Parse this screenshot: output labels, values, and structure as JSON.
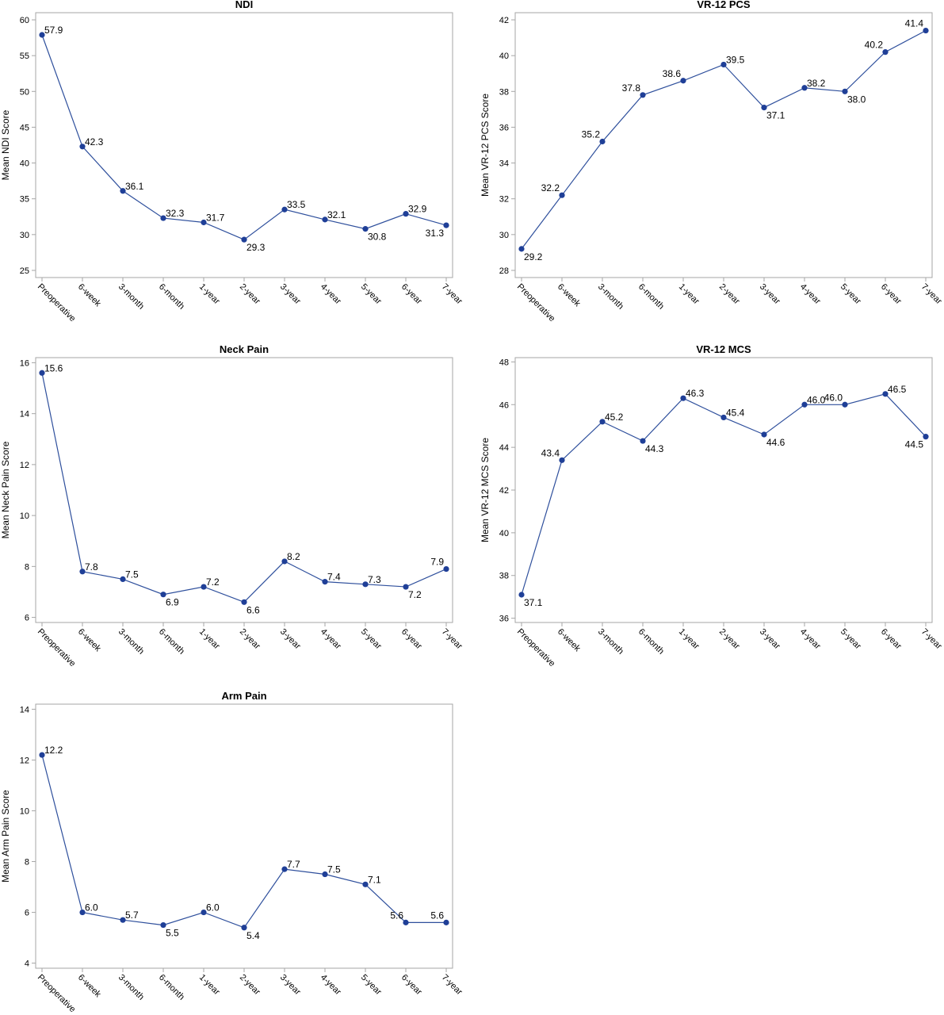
{
  "line_color": "#2E4F9C",
  "point_color": "#1F3F97",
  "frame_color": "#A6A6A6",
  "text_color": "#000000",
  "chart_data": [
    {
      "type": "line",
      "title": "NDI",
      "ylabel": "Mean NDI Score",
      "xlabel": "",
      "ylim": [
        24,
        61
      ],
      "yticks": [
        25,
        30,
        35,
        40,
        45,
        50,
        55,
        60
      ],
      "categories": [
        "Preoperative",
        "6-week",
        "3-month",
        "6-month",
        "1-year",
        "2-year",
        "3-year",
        "4-year",
        "5-year",
        "6-year",
        "7-year"
      ],
      "values": [
        57.9,
        42.3,
        36.1,
        32.3,
        31.7,
        29.3,
        33.5,
        32.1,
        30.8,
        32.9,
        31.3
      ],
      "labels": [
        "57.9",
        "42.3",
        "36.1",
        "32.3",
        "31.7",
        "29.3",
        "33.5",
        "32.1",
        "30.8",
        "32.9",
        "31.3"
      ],
      "label_pos": [
        "right",
        "right",
        "right",
        "right",
        "right",
        "below-right",
        "right",
        "right",
        "below-right",
        "right",
        "below-left"
      ]
    },
    {
      "type": "line",
      "title": "VR-12 PCS",
      "ylabel": "Mean VR-12 PCS Score",
      "xlabel": "",
      "ylim": [
        27.6,
        42.4
      ],
      "yticks": [
        28,
        30,
        32,
        34,
        36,
        38,
        40,
        42
      ],
      "categories": [
        "Preoperative",
        "6-week",
        "3-month",
        "6-month",
        "1-year",
        "2-year",
        "3-year",
        "4-year",
        "5-year",
        "6-year",
        "7-year"
      ],
      "values": [
        29.2,
        32.2,
        35.2,
        37.8,
        38.6,
        39.5,
        37.1,
        38.2,
        38.0,
        40.2,
        41.4
      ],
      "labels": [
        "29.2",
        "32.2",
        "35.2",
        "37.8",
        "38.6",
        "39.5",
        "37.1",
        "38.2",
        "38.0",
        "40.2",
        "41.4"
      ],
      "label_pos": [
        "below-right",
        "left",
        "left",
        "left",
        "left",
        "right",
        "below-right",
        "right",
        "below-right",
        "left",
        "left"
      ]
    },
    {
      "type": "line",
      "title": "Neck Pain",
      "ylabel": "Mean Neck Pain Score",
      "xlabel": "",
      "ylim": [
        5.8,
        16.2
      ],
      "yticks": [
        6,
        8,
        10,
        12,
        14,
        16
      ],
      "categories": [
        "Preoperative",
        "6-week",
        "3-month",
        "6-month",
        "1-year",
        "2-year",
        "3-year",
        "4-year",
        "5-year",
        "6-year",
        "7-year"
      ],
      "values": [
        15.6,
        7.8,
        7.5,
        6.9,
        7.2,
        6.6,
        8.2,
        7.4,
        7.3,
        7.2,
        7.9
      ],
      "labels": [
        "15.6",
        "7.8",
        "7.5",
        "6.9",
        "7.2",
        "6.6",
        "8.2",
        "7.4",
        "7.3",
        "7.2",
        "7.9"
      ],
      "label_pos": [
        "right",
        "right",
        "right",
        "below-right",
        "right",
        "below-right",
        "right",
        "right",
        "right",
        "below-right",
        "left"
      ]
    },
    {
      "type": "line",
      "title": "VR-12 MCS",
      "ylabel": "Mean VR-12 MCS Score",
      "xlabel": "",
      "ylim": [
        35.8,
        48.2
      ],
      "yticks": [
        36,
        38,
        40,
        42,
        44,
        46,
        48
      ],
      "categories": [
        "Preoperative",
        "6-week",
        "3-month",
        "6-month",
        "1-year",
        "2-year",
        "3-year",
        "4-year",
        "5-year",
        "6-year",
        "7-year"
      ],
      "values": [
        37.1,
        43.4,
        45.2,
        44.3,
        46.3,
        45.4,
        44.6,
        46.0,
        46.0,
        46.5,
        44.5
      ],
      "labels": [
        "37.1",
        "43.4",
        "45.2",
        "44.3",
        "46.3",
        "45.4",
        "44.6",
        "46.0",
        "46.0",
        "46.5",
        "44.5"
      ],
      "label_pos": [
        "below-right",
        "left",
        "right",
        "below-right",
        "right",
        "right",
        "below-right",
        "right",
        "left",
        "right",
        "below-left"
      ]
    },
    {
      "type": "line",
      "title": "Arm Pain",
      "ylabel": "Mean Arm Pain Score",
      "xlabel": "",
      "ylim": [
        3.8,
        14.2
      ],
      "yticks": [
        4,
        6,
        8,
        10,
        12,
        14
      ],
      "categories": [
        "Preoperative",
        "6-week",
        "3-month",
        "6-month",
        "1-year",
        "2-year",
        "3-year",
        "4-year",
        "5-year",
        "6-year",
        "7-year"
      ],
      "values": [
        12.2,
        6.0,
        5.7,
        5.5,
        6.0,
        5.4,
        7.7,
        7.5,
        7.1,
        5.6,
        5.6
      ],
      "labels": [
        "12.2",
        "6.0",
        "5.7",
        "5.5",
        "6.0",
        "5.4",
        "7.7",
        "7.5",
        "7.1",
        "5.6",
        "5.6"
      ],
      "label_pos": [
        "right",
        "right",
        "right",
        "below-right",
        "right",
        "below-right",
        "right",
        "right",
        "right",
        "left",
        "left"
      ]
    }
  ]
}
